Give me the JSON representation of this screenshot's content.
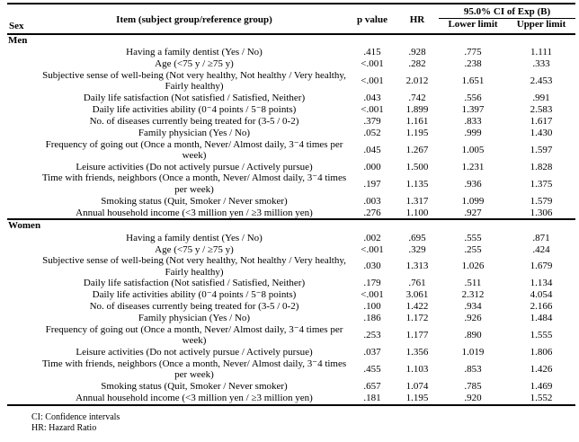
{
  "colors": {
    "text": "#000000",
    "background": "#ffffff",
    "rule": "#000000"
  },
  "table": {
    "headers": {
      "sex": "Sex",
      "item": "Item (subject group/reference group)",
      "p_value": "p value",
      "hr": "HR",
      "ci_group": "95.0% CI of Exp (B)",
      "lower": "Lower limit",
      "upper": "Upper limit"
    },
    "sections": [
      {
        "sex": "Men",
        "rows": [
          {
            "item": "Having a family dentist (Yes / No)",
            "p": ".415",
            "hr": ".928",
            "lower": ".775",
            "upper": "1.111"
          },
          {
            "item": "Age (<75 y / ≥75 y)",
            "p": "<.001",
            "hr": ".282",
            "lower": ".238",
            "upper": ".333"
          },
          {
            "item": "Subjective sense of well-being (Not very healthy, Not healthy / Very healthy, Fairly healthy)",
            "p": "<.001",
            "hr": "2.012",
            "lower": "1.651",
            "upper": "2.453"
          },
          {
            "item": "Daily life satisfaction (Not satisfied / Satisfied, Neither)",
            "p": ".043",
            "hr": ".742",
            "lower": ".556",
            "upper": ".991"
          },
          {
            "item": "Daily life activities ability (0⁻4 points / 5⁻8 points)",
            "p": "<.001",
            "hr": "1.899",
            "lower": "1.397",
            "upper": "2.583"
          },
          {
            "item": "No. of diseases currently being treated for (3-5 / 0-2)",
            "p": ".379",
            "hr": "1.161",
            "lower": ".833",
            "upper": "1.617"
          },
          {
            "item": "Family physician (Yes / No)",
            "p": ".052",
            "hr": "1.195",
            "lower": ".999",
            "upper": "1.430"
          },
          {
            "item": "Frequency of going out (Once a month, Never/ Almost daily, 3⁻4 times per week)",
            "p": ".045",
            "hr": "1.267",
            "lower": "1.005",
            "upper": "1.597"
          },
          {
            "item": "Leisure activities (Do not actively pursue / Actively pursue)",
            "p": ".000",
            "hr": "1.500",
            "lower": "1.231",
            "upper": "1.828"
          },
          {
            "item": "Time with friends, neighbors (Once a month, Never/ Almost daily, 3⁻4 times per week)",
            "p": ".197",
            "hr": "1.135",
            "lower": ".936",
            "upper": "1.375"
          },
          {
            "item": "Smoking status (Quit, Smoker / Never smoker)",
            "p": ".003",
            "hr": "1.317",
            "lower": "1.099",
            "upper": "1.579"
          },
          {
            "item": "Annual household income (<3 million yen / ≥3 million yen)",
            "p": ".276",
            "hr": "1.100",
            "lower": ".927",
            "upper": "1.306"
          }
        ]
      },
      {
        "sex": "Women",
        "rows": [
          {
            "item": "Having a family dentist (Yes / No)",
            "p": ".002",
            "hr": ".695",
            "lower": ".555",
            "upper": ".871"
          },
          {
            "item": "Age (<75 y / ≥75 y)",
            "p": "<.001",
            "hr": ".329",
            "lower": ".255",
            "upper": ".424"
          },
          {
            "item": "Subjective sense of well-being (Not very healthy, Not healthy / Very healthy, Fairly healthy)",
            "p": ".030",
            "hr": "1.313",
            "lower": "1.026",
            "upper": "1.679"
          },
          {
            "item": "Daily life satisfaction (Not satisfied / Satisfied, Neither)",
            "p": ".179",
            "hr": ".761",
            "lower": ".511",
            "upper": "1.134"
          },
          {
            "item": "Daily life activities ability (0⁻4 points / 5⁻8 points)",
            "p": "<.001",
            "hr": "3.061",
            "lower": "2.312",
            "upper": "4.054"
          },
          {
            "item": "No. of diseases currently being treated for (3-5 / 0-2)",
            "p": ".100",
            "hr": "1.422",
            "lower": ".934",
            "upper": "2.166"
          },
          {
            "item": "Family physician (Yes / No)",
            "p": ".186",
            "hr": "1.172",
            "lower": ".926",
            "upper": "1.484"
          },
          {
            "item": "Frequency of going out (Once a month, Never/ Almost daily, 3⁻4 times per week)",
            "p": ".253",
            "hr": "1.177",
            "lower": ".890",
            "upper": "1.555"
          },
          {
            "item": "Leisure activities (Do not actively pursue / Actively pursue)",
            "p": ".037",
            "hr": "1.356",
            "lower": "1.019",
            "upper": "1.806"
          },
          {
            "item": "Time with friends, neighbors (Once a month, Never/ Almost daily, 3⁻4 times per week)",
            "p": ".455",
            "hr": "1.103",
            "lower": ".853",
            "upper": "1.426"
          },
          {
            "item": "Smoking status (Quit, Smoker / Never smoker)",
            "p": ".657",
            "hr": "1.074",
            "lower": ".785",
            "upper": "1.469"
          },
          {
            "item": "Annual household income (<3 million yen / ≥3 million yen)",
            "p": ".181",
            "hr": "1.195",
            "lower": ".920",
            "upper": "1.552"
          }
        ]
      }
    ],
    "footnotes": [
      "CI: Confidence intervals",
      "HR: Hazard Ratio"
    ]
  }
}
